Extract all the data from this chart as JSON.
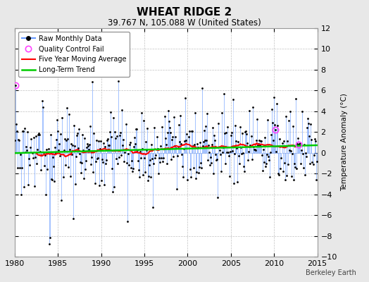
{
  "title": "WHEAT RIDGE 2",
  "subtitle": "39.767 N, 105.088 W (United States)",
  "ylabel_right": "Temperature Anomaly (°C)",
  "attribution": "Berkeley Earth",
  "x_start": 1980,
  "x_end": 2015,
  "y_min": -10,
  "y_max": 12,
  "yticks": [
    -10,
    -8,
    -6,
    -4,
    -2,
    0,
    2,
    4,
    6,
    8,
    10,
    12
  ],
  "xticks": [
    1980,
    1985,
    1990,
    1995,
    2000,
    2005,
    2010,
    2015
  ],
  "background_color": "#e8e8e8",
  "plot_bg_color": "#ffffff",
  "grid_color": "#bbbbbb",
  "raw_line_color": "#6699ff",
  "raw_dot_color": "#000000",
  "moving_avg_color": "#ff0000",
  "trend_color": "#00cc00",
  "qc_fail_color": "#ff44ff",
  "seed": 1234
}
